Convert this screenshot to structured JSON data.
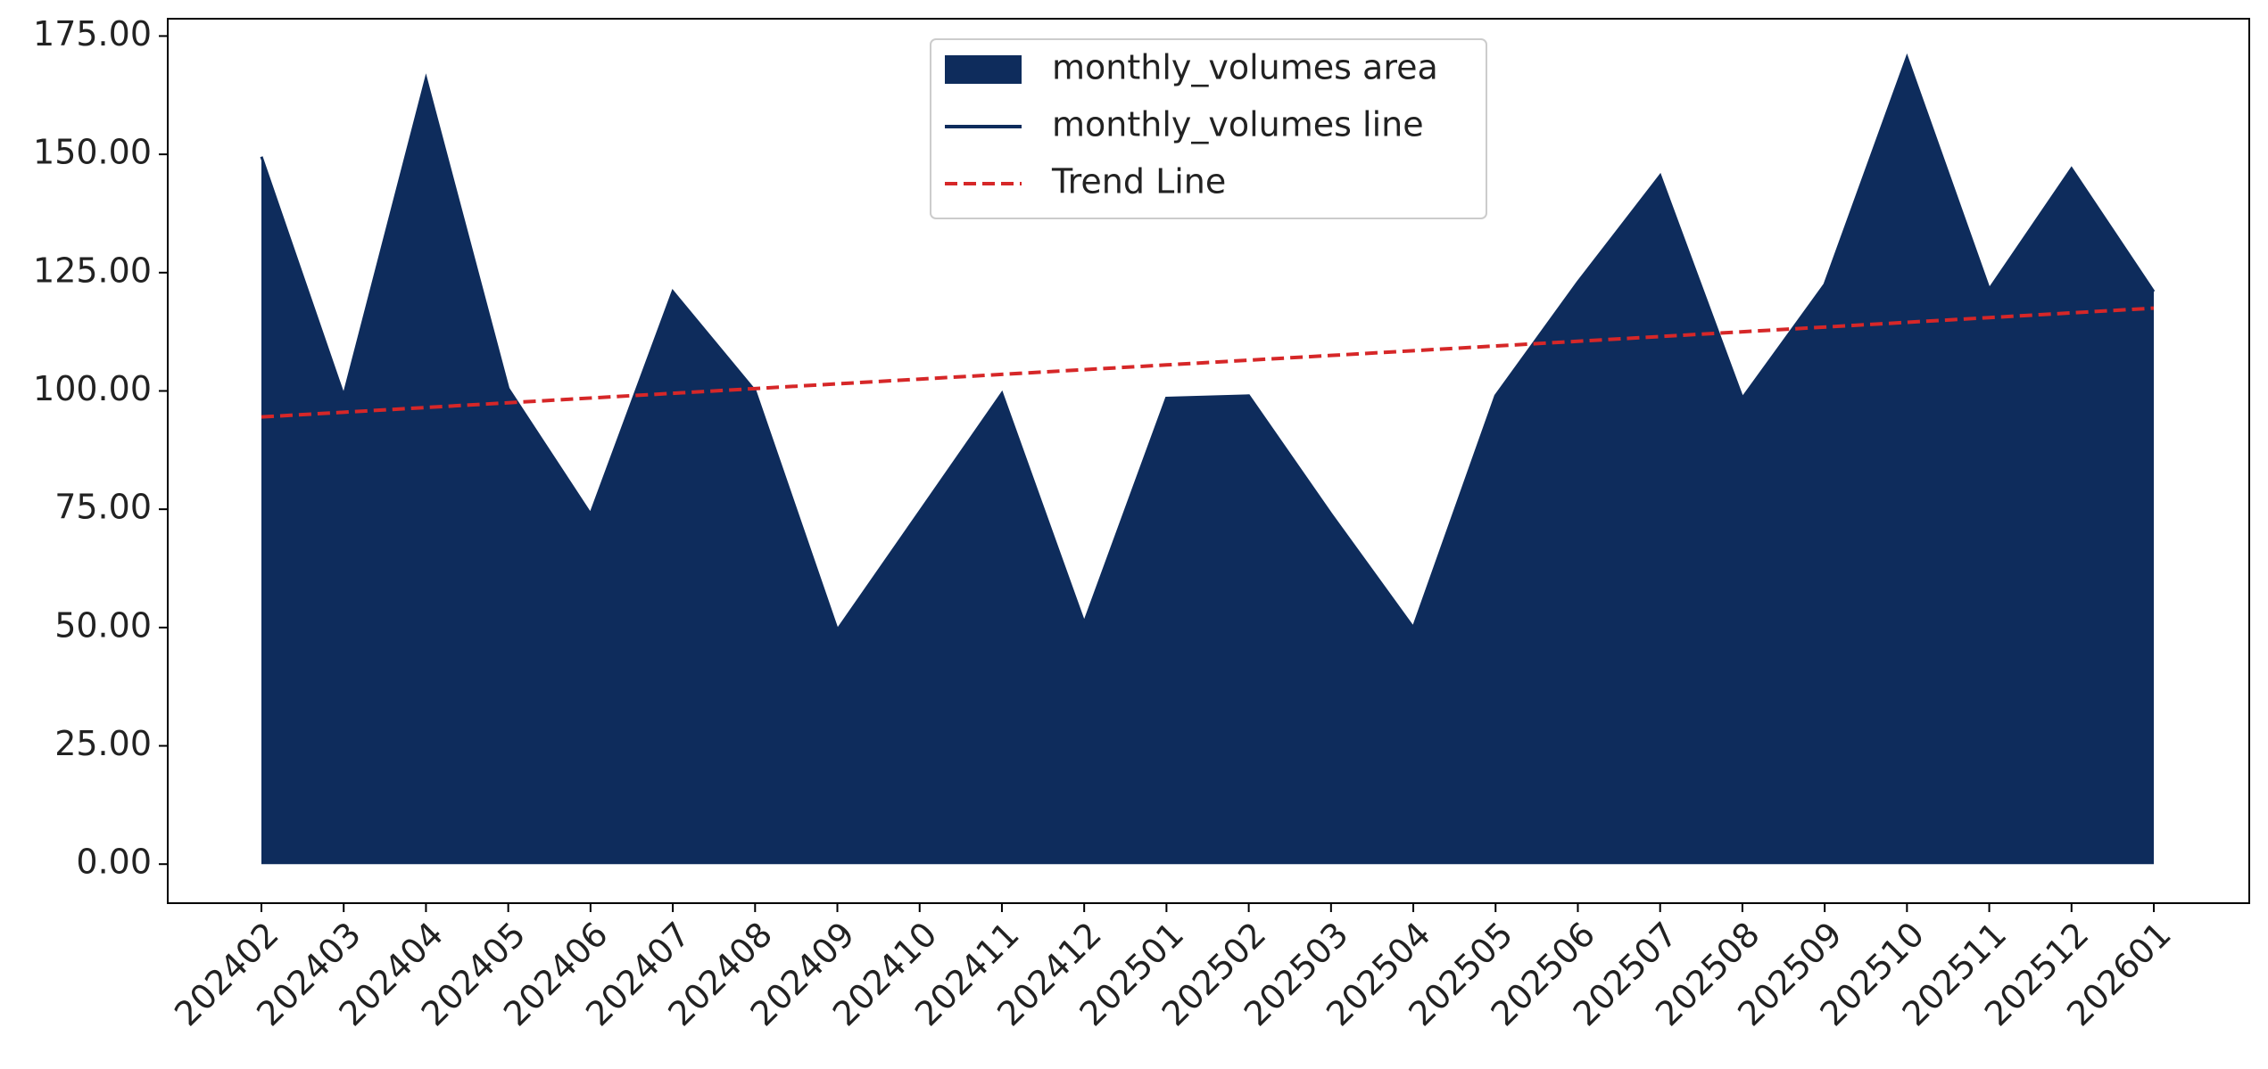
{
  "chart_data": {
    "type": "area",
    "categories": [
      "202402",
      "202403",
      "202404",
      "202405",
      "202406",
      "202407",
      "202408",
      "202409",
      "202410",
      "202411",
      "202412",
      "202501",
      "202502",
      "202503",
      "202504",
      "202505",
      "202506",
      "202507",
      "202508",
      "202509",
      "202510",
      "202511",
      "202512",
      "202601"
    ],
    "series": [
      {
        "name": "monthly_volumes area",
        "kind": "area",
        "color": "#0e2c5c",
        "values": [
          149.5,
          99,
          166,
          100.5,
          74,
          121,
          100,
          49.5,
          74.5,
          99.5,
          51,
          98.5,
          99,
          74,
          50,
          99,
          123,
          145.5,
          98.5,
          122.5,
          170.5,
          121.5,
          147,
          121
        ]
      },
      {
        "name": "monthly_volumes line",
        "kind": "line",
        "color": "#0e2c5c",
        "values": [
          149.5,
          99,
          166,
          100.5,
          74,
          121,
          100,
          49.5,
          74.5,
          99.5,
          51,
          98.5,
          99,
          74,
          50,
          99,
          123,
          145.5,
          98.5,
          122.5,
          170.5,
          121.5,
          147,
          121
        ]
      },
      {
        "name": "Trend Line",
        "kind": "dashed",
        "color": "#d62728",
        "values": [
          94.5,
          95.5,
          96.5,
          97.5,
          98.5,
          99.5,
          100.5,
          101.5,
          102.5,
          103.5,
          104.5,
          105.5,
          106.5,
          107.5,
          108.5,
          109.5,
          110.5,
          111.5,
          112.5,
          113.5,
          114.5,
          115.5,
          116.5,
          117.5
        ]
      }
    ],
    "ylim": [
      -8.25,
      178.66
    ],
    "yticks": [
      {
        "value": 0,
        "label": "0.00"
      },
      {
        "value": 25,
        "label": "25.00"
      },
      {
        "value": 50,
        "label": "50.00"
      },
      {
        "value": 75,
        "label": "75.00"
      },
      {
        "value": 100,
        "label": "100.00"
      },
      {
        "value": 125,
        "label": "125.00"
      },
      {
        "value": 150,
        "label": "150.00"
      },
      {
        "value": 175,
        "label": "175.00"
      }
    ],
    "grid": false,
    "legend": "upper center"
  }
}
